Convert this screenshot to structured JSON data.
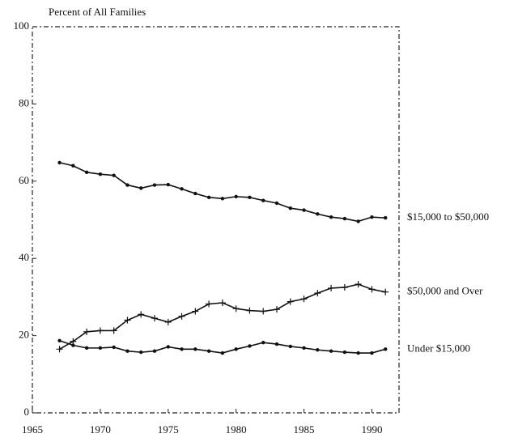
{
  "chart_data": {
    "type": "line",
    "ylabel": "Percent of All Families",
    "x": [
      1967,
      1968,
      1969,
      1970,
      1971,
      1972,
      1973,
      1974,
      1975,
      1976,
      1977,
      1978,
      1979,
      1980,
      1981,
      1982,
      1983,
      1984,
      1985,
      1986,
      1987,
      1988,
      1989,
      1990,
      1991
    ],
    "series": [
      {
        "name": "$15,000 to $50,000",
        "color": "#111111",
        "marker": "dot",
        "values": [
          64.8,
          64,
          62.3,
          61.8,
          61.5,
          59,
          58.2,
          59,
          59.1,
          58,
          56.8,
          55.8,
          55.5,
          56,
          55.8,
          55,
          54.3,
          53,
          52.5,
          51.5,
          50.7,
          50.3,
          49.6,
          50.7,
          50.5
        ]
      },
      {
        "name": "$50,000 and Over",
        "color": "#111111",
        "marker": "plus",
        "values": [
          16.5,
          18.5,
          21,
          21.3,
          21.3,
          24,
          25.5,
          24.5,
          23.5,
          25,
          26.3,
          28.2,
          28.5,
          27,
          26.5,
          26.3,
          26.8,
          28.8,
          29.5,
          31,
          32.3,
          32.5,
          33.3,
          32,
          31.3
        ]
      },
      {
        "name": "Under $15,000",
        "color": "#111111",
        "marker": "dot",
        "values": [
          18.7,
          17.5,
          16.8,
          16.8,
          17,
          16,
          15.7,
          16,
          17.1,
          16.5,
          16.5,
          16,
          15.5,
          16.5,
          17.3,
          18.2,
          17.8,
          17.2,
          16.8,
          16.3,
          16,
          15.7,
          15.5,
          15.5,
          16.5
        ]
      }
    ],
    "xlim": [
      1965,
      1992
    ],
    "xticks": [
      1965,
      1970,
      1975,
      1980,
      1985,
      1990
    ],
    "ylim": [
      0,
      100
    ],
    "yticks": [
      0,
      20,
      40,
      60,
      80,
      100
    ]
  }
}
